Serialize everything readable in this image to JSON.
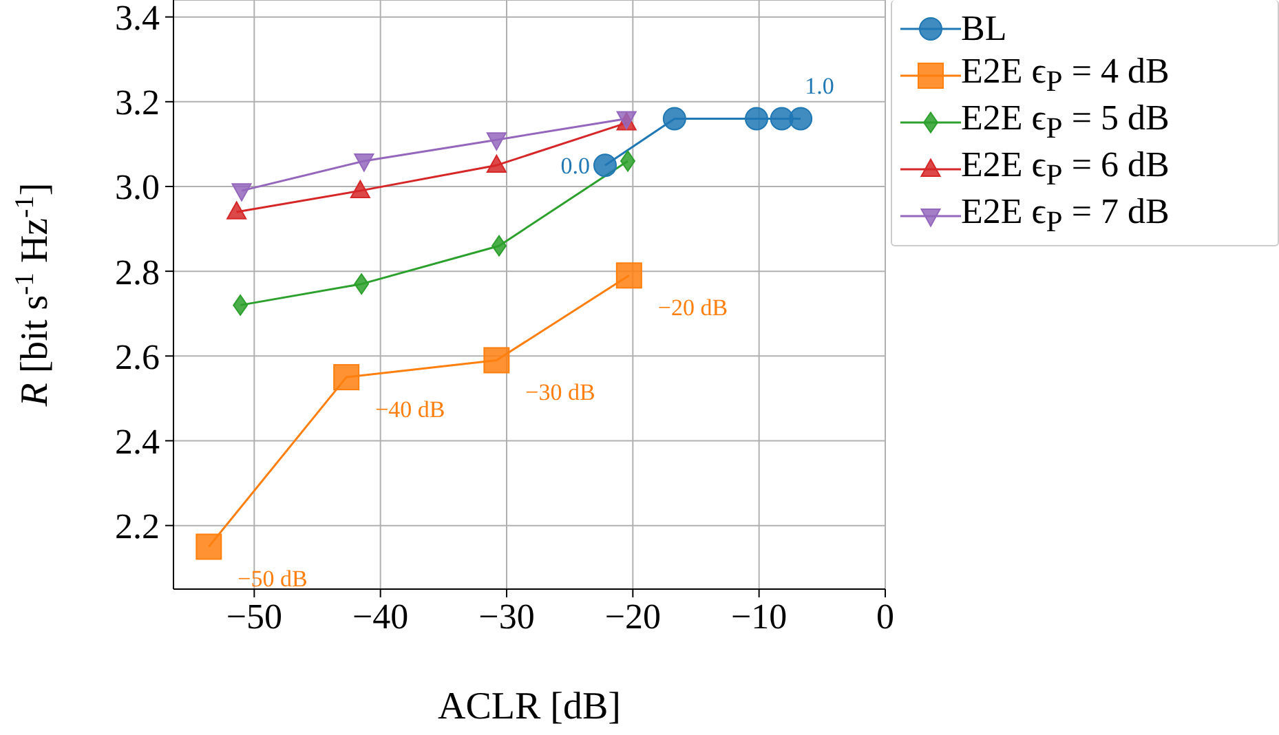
{
  "chart_data": {
    "type": "line",
    "xlabel": "ACLR [dB]",
    "ylabel": "R [bit s$^{-1}$ Hz$^{-1}$]",
    "xlim": [
      -56.4,
      0
    ],
    "ylim": [
      2.05,
      3.44
    ],
    "xticks": [
      {
        "value": -50,
        "label": "−50"
      },
      {
        "value": -40,
        "label": "−40"
      },
      {
        "value": -30,
        "label": "−30"
      },
      {
        "value": -20,
        "label": "−20"
      },
      {
        "value": -10,
        "label": "−10"
      },
      0
    ],
    "yticks": [
      2.2,
      2.4,
      2.6,
      2.8,
      {
        "value": 3,
        "label": "3.0"
      },
      3.2,
      3.4
    ],
    "grid": true,
    "legend": "top right",
    "series": [
      {
        "name": "BL",
        "color": "#1f77b4",
        "marker": "circle",
        "x": [
          -22.2,
          -16.7,
          -10.2,
          -8.2,
          -6.7
        ],
        "values": [
          3.05,
          3.16,
          3.16,
          3.16,
          3.16
        ]
      },
      {
        "name": "E2E ϵ$_{P}$ = 4 dB",
        "color": "#ff7f0e",
        "marker": "square",
        "x": [
          -53.6,
          -42.7,
          -30.8,
          -20.3
        ],
        "values": [
          2.15,
          2.55,
          2.59,
          2.79
        ]
      },
      {
        "name": "E2E ϵ$_{P}$ = 5 dB",
        "color": "#2ca02c",
        "marker": "diamond",
        "x": [
          -51.1,
          -41.5,
          -30.6,
          -20.4
        ],
        "values": [
          2.72,
          2.77,
          2.86,
          3.06
        ]
      },
      {
        "name": "E2E ϵ$_{P}$ = 6 dB",
        "color": "#d62728",
        "marker": "triangle",
        "x": [
          -51.4,
          -41.6,
          -30.8,
          -20.5
        ],
        "values": [
          2.94,
          2.99,
          3.05,
          3.15
        ]
      },
      {
        "name": "E2E ϵ$_{P}$ = 7 dB",
        "color": "#9467bd",
        "marker": "triangle-down",
        "x": [
          -51.0,
          -41.3,
          -30.8,
          -20.5
        ],
        "values": [
          2.99,
          3.06,
          3.11,
          3.16
        ]
      }
    ],
    "annotations": [
      {
        "text": "0.0",
        "x": -22.2,
        "y": 3.05
      },
      {
        "text": "1.0",
        "x": -6.7,
        "y": 3.16
      },
      {
        "text": "−50 dB",
        "x": -53.6,
        "y": 2.15
      },
      {
        "text": "−40 dB",
        "x": -42.7,
        "y": 2.55
      },
      {
        "text": "−30 dB",
        "x": -30.8,
        "y": 2.59
      },
      {
        "text": "−20 dB",
        "x": -20.3,
        "y": 2.79
      }
    ]
  }
}
